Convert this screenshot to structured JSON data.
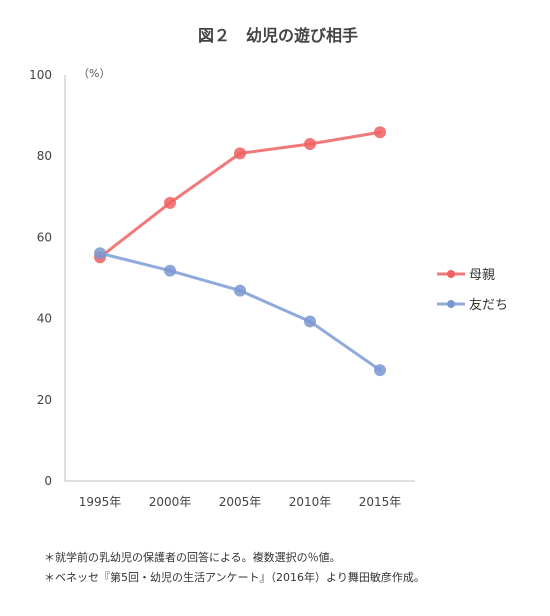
{
  "chart_data": {
    "type": "line",
    "title": "図２　幼児の遊び相手",
    "unit_label": "（%）",
    "categories": [
      "1995年",
      "2000年",
      "2005年",
      "2010年",
      "2015年"
    ],
    "ylim": [
      0,
      100
    ],
    "yticks": [
      0,
      20,
      40,
      60,
      80,
      100
    ],
    "grid": false,
    "legend_position": "right",
    "series": [
      {
        "name": "母親",
        "values": [
          55.1,
          68.5,
          80.7,
          83.0,
          85.9
        ],
        "color": "#f07a7a",
        "marker_color": "#f06060"
      },
      {
        "name": "友だち",
        "values": [
          56.1,
          51.8,
          46.9,
          39.3,
          27.3
        ],
        "color": "#8faadc",
        "marker_color": "#7b97d1"
      }
    ]
  },
  "notes": [
    "＊就学前の乳幼児の保護者の回答による。複数選択の％値。",
    "＊ベネッセ『第5回・幼児の生活アンケート』（2016年）より舞田敏彦作成。"
  ]
}
